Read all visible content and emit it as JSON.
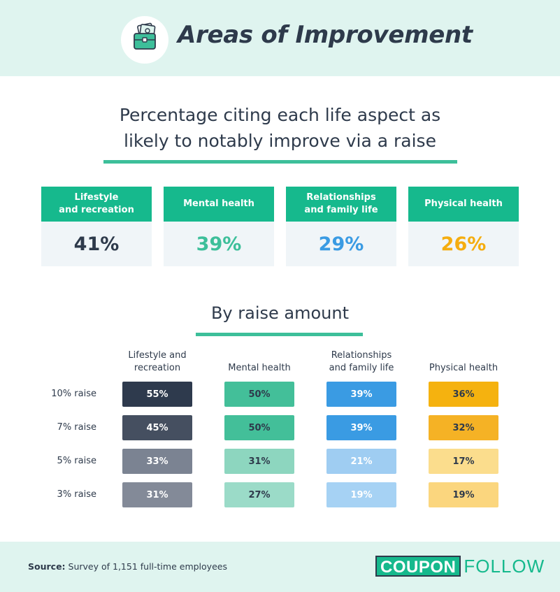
{
  "header": {
    "title": "Areas of Improvement",
    "icon": "briefcase-money-icon"
  },
  "summary": {
    "subtitle_line1": "Percentage citing each life aspect as",
    "subtitle_line2": "likely to notably improve via a raise",
    "cards": [
      {
        "label_line1": "Lifestyle",
        "label_line2": "and recreation",
        "value": "41%",
        "color": "#2e3a4b"
      },
      {
        "label_line1": "Mental health",
        "label_line2": "",
        "value": "39%",
        "color": "#3dbf9a"
      },
      {
        "label_line1": "Relationships",
        "label_line2": "and family life",
        "value": "29%",
        "color": "#3a9be3"
      },
      {
        "label_line1": "Physical health",
        "label_line2": "",
        "value": "26%",
        "color": "#f5ad0f"
      }
    ]
  },
  "chart_data": {
    "type": "table",
    "title": "By raise amount",
    "columns": [
      {
        "line1": "Lifestyle and",
        "line2": "recreation"
      },
      {
        "line1": "Mental health",
        "line2": ""
      },
      {
        "line1": "Relationships",
        "line2": "and family life"
      },
      {
        "line1": "Physical health",
        "line2": ""
      }
    ],
    "rows": [
      {
        "label": "10% raise",
        "values": [
          "55%",
          "50%",
          "39%",
          "36%"
        ]
      },
      {
        "label": "7% raise",
        "values": [
          "45%",
          "50%",
          "39%",
          "32%"
        ]
      },
      {
        "label": "5% raise",
        "values": [
          "33%",
          "31%",
          "21%",
          "17%"
        ]
      },
      {
        "label": "3% raise",
        "values": [
          "31%",
          "27%",
          "19%",
          "19%"
        ]
      }
    ],
    "cell_colors": [
      [
        "#2e3a4d",
        "#43bf99",
        "#3a9be3",
        "#f5b20f"
      ],
      [
        "#454f60",
        "#43bf99",
        "#3a9be3",
        "#f5b225"
      ],
      [
        "#7b8392",
        "#8dd6bf",
        "#9fcdf2",
        "#fbdd8d"
      ],
      [
        "#838a98",
        "#9bdbc8",
        "#a6d2f4",
        "#fbd67e"
      ]
    ],
    "cell_text_colors": [
      [
        "#ffffff",
        "#2e3a4b",
        "#ffffff",
        "#2e3a4b"
      ],
      [
        "#ffffff",
        "#2e3a4b",
        "#ffffff",
        "#2e3a4b"
      ],
      [
        "#ffffff",
        "#2e3a4b",
        "#ffffff",
        "#2e3a4b"
      ],
      [
        "#ffffff",
        "#2e3a4b",
        "#ffffff",
        "#2e3a4b"
      ]
    ]
  },
  "footer": {
    "source_label": "Source:",
    "source_text": " Survey of 1,151 full-time employees",
    "logo_part1": "COUPON",
    "logo_part2": "FOLLOW"
  }
}
